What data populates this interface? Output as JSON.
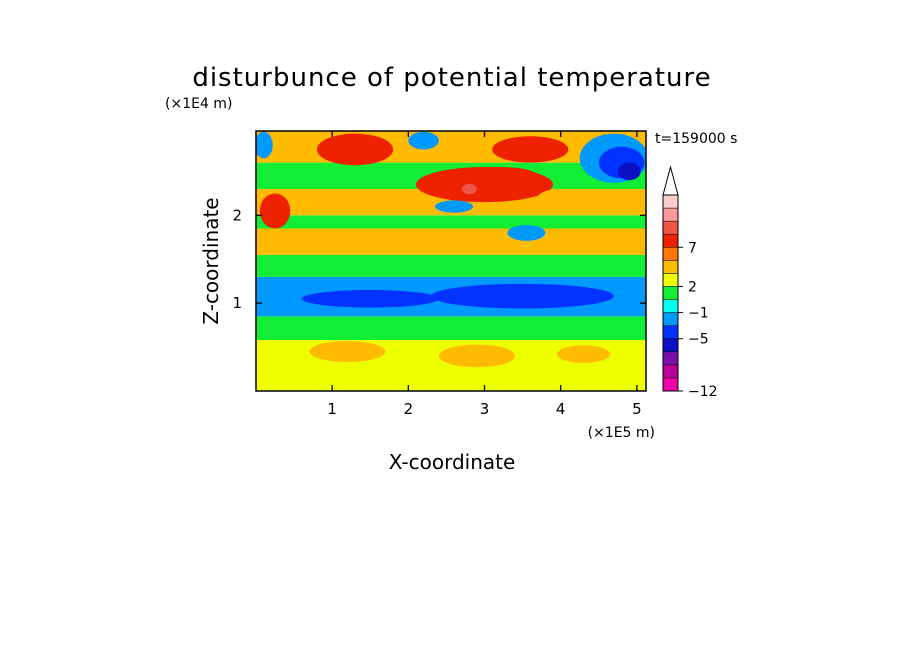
{
  "chart_data": {
    "type": "heatmap",
    "title": "disturbunce of potential temperature",
    "xlabel": "X-coordinate",
    "ylabel": "Z-coordinate",
    "x_unit": "(×1E5 m)",
    "y_unit": "(×1E4 m)",
    "time_label": "t=159000 s",
    "xlim": [
      0,
      5.12
    ],
    "ylim": [
      0,
      2.96
    ],
    "x_ticks": [
      1,
      2,
      3,
      4,
      5
    ],
    "y_ticks": [
      1,
      2
    ],
    "colorbar": {
      "levels": [
        -12,
        -10,
        -8,
        -6,
        -5,
        -3,
        -1,
        1,
        2,
        4,
        5,
        7,
        8,
        10
      ],
      "colors": [
        "#ee00aa",
        "#bb0099",
        "#7711aa",
        "#0b10c4",
        "#0033ff",
        "#0099ff",
        "#00ffee",
        "#11ee33",
        "#eeff00",
        "#ffbb00",
        "#ff7700",
        "#ee2200",
        "#ee5544",
        "#ff9999",
        "#ffcccc"
      ],
      "tick_labels": [
        "-12",
        "-5",
        "-1",
        "2",
        "7"
      ],
      "extend": "max"
    },
    "bands": [
      {
        "z": [
          0.0,
          0.05
        ],
        "value": 1.5
      },
      {
        "z": [
          0.05,
          0.25
        ],
        "value": 1.0
      },
      {
        "z": [
          0.25,
          0.58
        ],
        "value": 1.6
      },
      {
        "z": [
          0.58,
          0.85
        ],
        "value": 0.3
      },
      {
        "z": [
          0.85,
          1.3
        ],
        "value": -4.5
      },
      {
        "z": [
          1.3,
          1.55
        ],
        "value": -0.5
      },
      {
        "z": [
          1.55,
          1.85
        ],
        "value": 2.5
      },
      {
        "z": [
          1.85,
          2.0
        ],
        "value": 0.5
      },
      {
        "z": [
          2.0,
          2.3
        ],
        "value": 3.5
      },
      {
        "z": [
          2.3,
          2.6
        ],
        "value": 0.0
      },
      {
        "z": [
          2.6,
          2.96
        ],
        "value": 3.0
      }
    ],
    "blobs": [
      {
        "x": 1.2,
        "z": 0.45,
        "rx": 0.5,
        "rz": 0.12,
        "value": 2.5
      },
      {
        "x": 2.9,
        "z": 0.4,
        "rx": 0.5,
        "rz": 0.13,
        "value": 2.5
      },
      {
        "x": 4.3,
        "z": 0.42,
        "rx": 0.35,
        "rz": 0.1,
        "value": 2.5
      },
      {
        "x": 3.5,
        "z": 1.08,
        "rx": 1.2,
        "rz": 0.14,
        "value": -5.5
      },
      {
        "x": 1.5,
        "z": 1.05,
        "rx": 0.9,
        "rz": 0.1,
        "value": -5.5
      },
      {
        "x": 0.25,
        "z": 2.05,
        "rx": 0.2,
        "rz": 0.2,
        "value": 5.5
      },
      {
        "x": 1.3,
        "z": 1.7,
        "rx": 0.6,
        "rz": 0.1,
        "value": 3.5
      },
      {
        "x": 3.0,
        "z": 2.35,
        "rx": 0.9,
        "rz": 0.2,
        "value": 5.5
      },
      {
        "x": 3.2,
        "z": 2.45,
        "rx": 0.5,
        "rz": 0.1,
        "value": 6.5
      },
      {
        "x": 1.3,
        "z": 2.75,
        "rx": 0.5,
        "rz": 0.18,
        "value": 5.5
      },
      {
        "x": 3.6,
        "z": 2.75,
        "rx": 0.5,
        "rz": 0.15,
        "value": 5.5
      },
      {
        "x": 2.6,
        "z": 2.1,
        "rx": 0.25,
        "rz": 0.07,
        "value": -4.5
      },
      {
        "x": 3.55,
        "z": 1.8,
        "rx": 0.25,
        "rz": 0.09,
        "value": -4.5
      },
      {
        "x": 0.1,
        "z": 2.8,
        "rx": 0.12,
        "rz": 0.15,
        "value": -4.5
      },
      {
        "x": 2.8,
        "z": 2.3,
        "rx": 0.1,
        "rz": 0.06,
        "value": 7.5
      },
      {
        "x": 4.0,
        "z": 2.2,
        "rx": 0.3,
        "rz": 0.1,
        "value": 3.5
      },
      {
        "x": 4.7,
        "z": 2.65,
        "rx": 0.45,
        "rz": 0.28,
        "value": -4.5
      },
      {
        "x": 4.8,
        "z": 2.6,
        "rx": 0.3,
        "rz": 0.18,
        "value": -5.5
      },
      {
        "x": 4.9,
        "z": 2.5,
        "rx": 0.15,
        "rz": 0.1,
        "value": -7.0
      },
      {
        "x": 2.2,
        "z": 2.85,
        "rx": 0.2,
        "rz": 0.1,
        "value": -4.5
      }
    ]
  }
}
